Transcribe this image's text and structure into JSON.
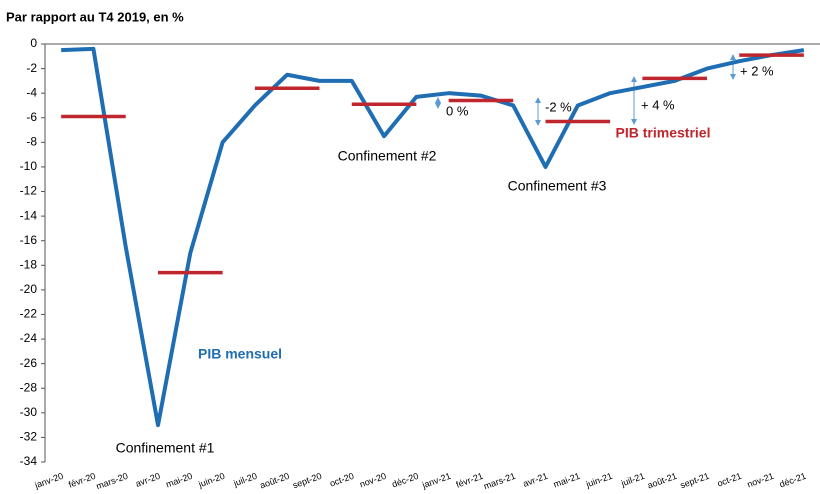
{
  "chart_data": {
    "type": "line",
    "title": "Par rapport au T4 2019, en %",
    "categories": [
      "janv-20",
      "févr-20",
      "mars-20",
      "avr-20",
      "mai-20",
      "juin-20",
      "juil-20",
      "août-20",
      "sept-20",
      "oct-20",
      "nov-20",
      "déc-20",
      "janv-21",
      "févr-21",
      "mars-21",
      "avr-21",
      "mai-21",
      "juin-21",
      "juil-21",
      "août-21",
      "sept-21",
      "oct-21",
      "nov-21",
      "déc-21"
    ],
    "series": [
      {
        "name": "PIB mensuel",
        "color": "#1f6db3",
        "values": [
          -0.5,
          -0.4,
          -16.5,
          -31,
          -17,
          -8,
          -5,
          -2.5,
          -3,
          -3,
          -7.5,
          -4.3,
          -4,
          -4.2,
          -5,
          -10,
          -5,
          -4,
          -3.5,
          -3,
          -2,
          -1.4,
          -0.9,
          -0.5
        ]
      },
      {
        "name": "PIB trimestriel",
        "color": "#c0262d",
        "values": [
          null,
          -5.9,
          null,
          null,
          -18.6,
          null,
          null,
          -3.6,
          null,
          null,
          -4.9,
          null,
          null,
          -4.6,
          null,
          null,
          -6.3,
          null,
          null,
          -2.8,
          null,
          null,
          -0.9,
          null
        ]
      }
    ],
    "annotations": [
      "Confinement #1",
      "Confinement #2",
      "Confinement #3",
      "0 %",
      "-2 %",
      "+ 4 %",
      "+ 2 %"
    ],
    "ylim": [
      -34,
      0
    ],
    "yticks": [
      0,
      -2,
      -4,
      -6,
      -8,
      -10,
      -12,
      -14,
      -16,
      -18,
      -20,
      -22,
      -24,
      -26,
      -28,
      -30,
      -32,
      -34
    ],
    "grid": false
  }
}
